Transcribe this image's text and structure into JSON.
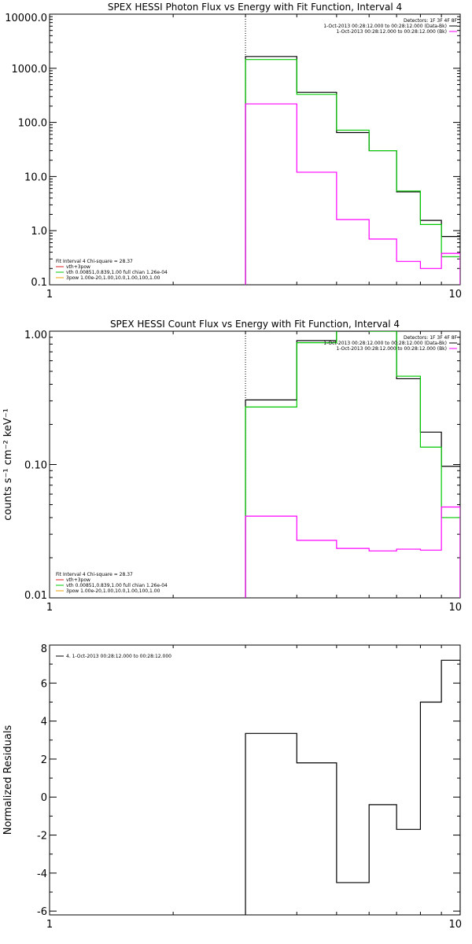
{
  "colors": {
    "observed": "#000000",
    "total": "#00c800",
    "comp1": "#ff00ff",
    "comp2": "#dd2222",
    "comp3": "#e8a000"
  },
  "chart_data": [
    {
      "type": "line",
      "title": "SPEX HESSI Photon Flux vs Energy with Fit Function, Interval 4",
      "xlabel": "",
      "ylabel": "",
      "xscale": "log",
      "yscale": "log",
      "xlim": [
        1,
        10
      ],
      "ylim": [
        0.1,
        10000
      ],
      "xticks": [
        {
          "v": 1,
          "label": "1"
        },
        {
          "v": 10,
          "label": "10"
        }
      ],
      "yticks": [
        {
          "v": 0.1,
          "label": "0.1"
        },
        {
          "v": 1,
          "label": "1.0"
        },
        {
          "v": 10,
          "label": "10.0"
        },
        {
          "v": 100,
          "label": "100.0"
        },
        {
          "v": 1000,
          "label": "1000.0"
        },
        {
          "v": 10000,
          "label": "10000.0"
        }
      ],
      "vline_x": 3,
      "edges": [
        3,
        4,
        5,
        6,
        7,
        8,
        9,
        10
      ],
      "series": [
        {
          "key": "observed",
          "values": [
            1650,
            360,
            65,
            30,
            5.2,
            1.55,
            0.78
          ]
        },
        {
          "key": "total",
          "values": [
            1450,
            330,
            72,
            30,
            5.4,
            1.3,
            0.33
          ]
        },
        {
          "key": "comp1",
          "values": [
            220,
            12,
            1.6,
            0.7,
            0.27,
            0.2,
            0.38
          ]
        }
      ],
      "legend_top": {
        "header": "Detectors: 1F 3F 4F 8F",
        "entries": [
          {
            "text": "1-Oct-2013 00:28:12.000 to 00:28:12.000 (Data-Bk)",
            "color_key": "observed"
          },
          {
            "text": "1-Oct-2013 00:28:12.000 to 00:28:12.000 (Bk)",
            "color_key": "comp1"
          }
        ]
      },
      "legend_bottom": {
        "header": "Fit Interval  4   Chi-square = 28.37",
        "entries": [
          {
            "text": "vth+3pow",
            "color_key": "comp2"
          },
          {
            "text": "vth 0.00851,0.839,1.00  full chian 1.26e-04",
            "color_key": "total"
          },
          {
            "text": "3pow 1.00e-20,1.00,10.0,1.00,100,1.00",
            "color_key": "comp3"
          }
        ]
      }
    },
    {
      "type": "line",
      "title": "SPEX HESSI Count Flux vs Energy with Fit Function, Interval 4",
      "xlabel": "",
      "ylabel": "counts s⁻¹ cm⁻² keV⁻¹",
      "xscale": "log",
      "yscale": "log",
      "xlim": [
        1,
        10
      ],
      "ylim": [
        0.01,
        1
      ],
      "xticks": [
        {
          "v": 1,
          "label": "1"
        },
        {
          "v": 10,
          "label": "10"
        }
      ],
      "yticks": [
        {
          "v": 0.01,
          "label": "0.01"
        },
        {
          "v": 0.1,
          "label": "0.10"
        },
        {
          "v": 1,
          "label": "1.00"
        }
      ],
      "vline_x": 3,
      "edges": [
        3,
        4,
        5,
        6,
        7,
        8,
        9,
        10
      ],
      "series": [
        {
          "key": "observed",
          "values": [
            0.305,
            0.85,
            1.0,
            1.0,
            0.44,
            0.175,
            0.097
          ]
        },
        {
          "key": "total",
          "values": [
            0.27,
            0.82,
            1.02,
            1.0,
            0.46,
            0.135,
            0.04
          ]
        },
        {
          "key": "comp1",
          "values": [
            0.041,
            0.027,
            0.0235,
            0.0225,
            0.0232,
            0.0228,
            0.048
          ]
        }
      ],
      "legend_top": {
        "header": "Detectors: 1F 3F 4F 8F",
        "entries": [
          {
            "text": "1-Oct-2013 00:28:12.000 to 00:28:12.000 (Data-Bk)",
            "color_key": "observed"
          },
          {
            "text": "1-Oct-2013 00:28:12.000 to 00:28:12.000 (Bk)",
            "color_key": "comp1"
          }
        ]
      },
      "legend_bottom": {
        "header": "Fit Interval  4   Chi-square = 28.37",
        "entries": [
          {
            "text": "vth+3pow",
            "color_key": "comp2"
          },
          {
            "text": "vth 0.00851,0.839,1.00  full chian 1.26e-04",
            "color_key": "total"
          },
          {
            "text": "3pow 1.00e-20,1.00,10.0,1.00,100,1.00",
            "color_key": "comp3"
          }
        ]
      }
    },
    {
      "type": "line",
      "title": "",
      "xlabel": "",
      "ylabel": "Normalized Residuals",
      "xscale": "log",
      "yscale": "linear",
      "xlim": [
        1,
        10
      ],
      "ylim": [
        -6.2,
        8
      ],
      "xticks": [
        {
          "v": 1,
          "label": "1"
        },
        {
          "v": 10,
          "label": "10"
        }
      ],
      "yticks": [
        {
          "v": -6,
          "label": "-6"
        },
        {
          "v": -4,
          "label": "-4"
        },
        {
          "v": -2,
          "label": "-2"
        },
        {
          "v": 0,
          "label": "0"
        },
        {
          "v": 2,
          "label": "2"
        },
        {
          "v": 4,
          "label": "4"
        },
        {
          "v": 6,
          "label": "6"
        },
        {
          "v": 8,
          "label": "8"
        }
      ],
      "edges": [
        3,
        4,
        5,
        6,
        7,
        8,
        9,
        10
      ],
      "series": [
        {
          "key": "observed",
          "values": [
            3.35,
            1.8,
            -4.5,
            -0.4,
            -1.7,
            5.0,
            7.2
          ]
        }
      ],
      "legend_top": {
        "header": "",
        "entries": [
          {
            "text": "4.  1-Oct-2013 00:28:12.000 to 00:28:12.000",
            "color_key": "observed"
          }
        ]
      }
    }
  ]
}
